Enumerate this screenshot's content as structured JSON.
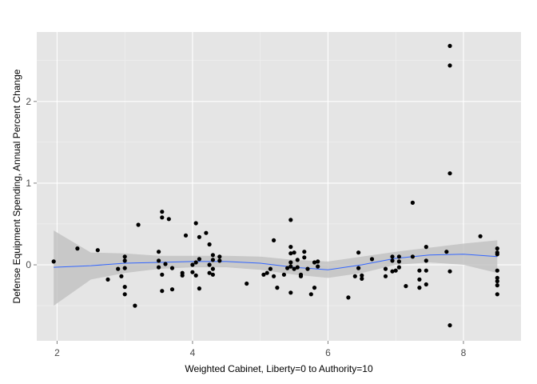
{
  "chart_data": {
    "type": "scatter",
    "title": "",
    "xlabel": "Weighted Cabinet, Liberty=0 to Authority=10",
    "ylabel": "Defense Equipment Spending, Annual Percent Change",
    "xlim": [
      1.7,
      8.85
    ],
    "ylim": [
      -0.93,
      2.85
    ],
    "x_ticks": [
      2,
      4,
      6,
      8
    ],
    "y_ticks": [
      0,
      1,
      2
    ],
    "grid": true,
    "legend": "none",
    "colors": {
      "panel": "#e5e5e5",
      "grid_major": "#ffffff",
      "grid_minor": "#f2f2f2",
      "points": "#000000",
      "smooth_line": "#3366ff",
      "confidence_band": "#bebebe",
      "tick_label": "#4d4d4d"
    },
    "points": [
      [
        1.95,
        0.04
      ],
      [
        2.3,
        0.2
      ],
      [
        2.6,
        0.18
      ],
      [
        2.75,
        -0.18
      ],
      [
        2.9,
        -0.05
      ],
      [
        2.95,
        -0.14
      ],
      [
        3.0,
        0.1
      ],
      [
        3.0,
        0.05
      ],
      [
        3.0,
        -0.04
      ],
      [
        3.0,
        -0.27
      ],
      [
        3.0,
        -0.36
      ],
      [
        3.15,
        -0.5
      ],
      [
        3.2,
        0.49
      ],
      [
        3.5,
        0.16
      ],
      [
        3.5,
        0.05
      ],
      [
        3.5,
        -0.03
      ],
      [
        3.55,
        0.65
      ],
      [
        3.55,
        0.58
      ],
      [
        3.55,
        -0.12
      ],
      [
        3.55,
        -0.32
      ],
      [
        3.6,
        0.01
      ],
      [
        3.65,
        0.56
      ],
      [
        3.7,
        -0.3
      ],
      [
        3.7,
        -0.04
      ],
      [
        3.85,
        -0.1
      ],
      [
        3.85,
        -0.13
      ],
      [
        3.9,
        0.36
      ],
      [
        4.0,
        0.0
      ],
      [
        4.0,
        -0.09
      ],
      [
        4.05,
        0.51
      ],
      [
        4.05,
        0.03
      ],
      [
        4.05,
        -0.13
      ],
      [
        4.1,
        0.34
      ],
      [
        4.1,
        0.07
      ],
      [
        4.1,
        -0.29
      ],
      [
        4.2,
        0.39
      ],
      [
        4.25,
        0.25
      ],
      [
        4.25,
        0.0
      ],
      [
        4.25,
        -0.1
      ],
      [
        4.3,
        0.12
      ],
      [
        4.3,
        0.06
      ],
      [
        4.3,
        -0.05
      ],
      [
        4.3,
        -0.12
      ],
      [
        4.4,
        0.1
      ],
      [
        4.4,
        0.05
      ],
      [
        4.8,
        -0.23
      ],
      [
        5.05,
        -0.12
      ],
      [
        5.1,
        -0.1
      ],
      [
        5.15,
        -0.05
      ],
      [
        5.2,
        0.3
      ],
      [
        5.2,
        -0.14
      ],
      [
        5.25,
        -0.28
      ],
      [
        5.35,
        -0.12
      ],
      [
        5.4,
        -0.04
      ],
      [
        5.45,
        0.55
      ],
      [
        5.45,
        0.22
      ],
      [
        5.45,
        0.14
      ],
      [
        5.45,
        0.03
      ],
      [
        5.45,
        -0.02
      ],
      [
        5.45,
        -0.34
      ],
      [
        5.5,
        0.15
      ],
      [
        5.5,
        -0.05
      ],
      [
        5.55,
        0.06
      ],
      [
        5.55,
        -0.03
      ],
      [
        5.6,
        -0.12
      ],
      [
        5.6,
        -0.14
      ],
      [
        5.65,
        0.16
      ],
      [
        5.65,
        0.09
      ],
      [
        5.7,
        -0.05
      ],
      [
        5.75,
        -0.36
      ],
      [
        5.8,
        0.03
      ],
      [
        5.8,
        -0.28
      ],
      [
        5.85,
        0.04
      ],
      [
        5.85,
        -0.02
      ],
      [
        6.3,
        -0.4
      ],
      [
        6.4,
        -0.14
      ],
      [
        6.45,
        0.15
      ],
      [
        6.45,
        -0.04
      ],
      [
        6.5,
        -0.17
      ],
      [
        6.5,
        -0.13
      ],
      [
        6.65,
        0.07
      ],
      [
        6.85,
        -0.05
      ],
      [
        6.85,
        -0.14
      ],
      [
        6.95,
        0.1
      ],
      [
        6.95,
        0.05
      ],
      [
        6.95,
        -0.08
      ],
      [
        7.0,
        -0.07
      ],
      [
        7.05,
        0.1
      ],
      [
        7.05,
        0.04
      ],
      [
        7.05,
        -0.03
      ],
      [
        7.15,
        -0.26
      ],
      [
        7.25,
        0.76
      ],
      [
        7.25,
        0.1
      ],
      [
        7.35,
        -0.07
      ],
      [
        7.35,
        -0.18
      ],
      [
        7.35,
        -0.28
      ],
      [
        7.45,
        0.22
      ],
      [
        7.45,
        0.05
      ],
      [
        7.45,
        -0.07
      ],
      [
        7.45,
        -0.24
      ],
      [
        7.75,
        0.16
      ],
      [
        7.8,
        2.68
      ],
      [
        7.8,
        2.44
      ],
      [
        7.8,
        1.12
      ],
      [
        7.8,
        -0.08
      ],
      [
        7.8,
        -0.74
      ],
      [
        8.25,
        0.35
      ],
      [
        8.5,
        0.2
      ],
      [
        8.5,
        0.15
      ],
      [
        8.5,
        0.13
      ],
      [
        8.5,
        -0.07
      ],
      [
        8.5,
        -0.16
      ],
      [
        8.5,
        -0.2
      ],
      [
        8.5,
        -0.25
      ],
      [
        8.5,
        -0.36
      ]
    ],
    "smooth": {
      "method": "loess",
      "x": [
        1.95,
        2.5,
        3.0,
        3.5,
        4.0,
        4.5,
        5.0,
        5.5,
        6.0,
        6.5,
        7.0,
        7.5,
        8.0,
        8.5
      ],
      "y": [
        -0.03,
        -0.01,
        0.02,
        0.03,
        0.04,
        0.04,
        0.02,
        -0.03,
        -0.06,
        0.0,
        0.08,
        0.12,
        0.13,
        0.1
      ],
      "lower": [
        -0.5,
        -0.18,
        -0.1,
        -0.05,
        -0.03,
        -0.03,
        -0.06,
        -0.12,
        -0.16,
        -0.1,
        0.0,
        0.03,
        0.0,
        -0.1
      ],
      "upper": [
        0.42,
        0.15,
        0.14,
        0.11,
        0.11,
        0.11,
        0.1,
        0.06,
        0.04,
        0.1,
        0.16,
        0.21,
        0.26,
        0.3
      ]
    }
  }
}
